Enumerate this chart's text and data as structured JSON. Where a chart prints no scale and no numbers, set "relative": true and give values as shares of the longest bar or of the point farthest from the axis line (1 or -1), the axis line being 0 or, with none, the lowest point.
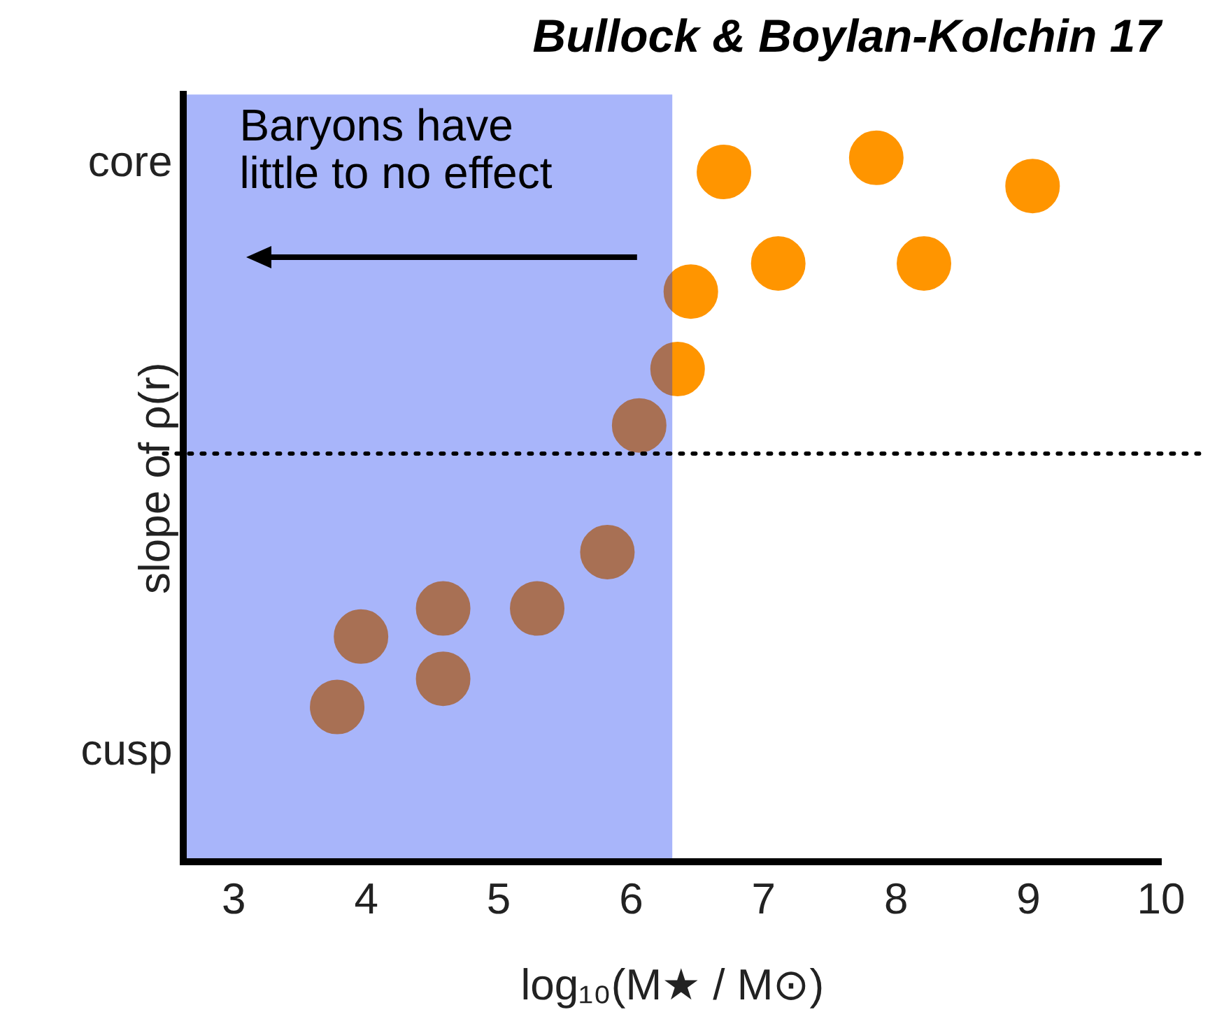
{
  "chart_data": {
    "type": "scatter",
    "title": "Bullock & Boylan-Kolchin 17",
    "xlabel": "log₁₀(M★ / M⊙)",
    "ylabel": "slope of ρ(r)",
    "relative": true,
    "x": [
      3.78,
      3.96,
      4.58,
      4.58,
      5.29,
      5.82,
      6.06,
      6.35,
      6.45,
      6.7,
      7.11,
      7.85,
      8.21,
      9.03
    ],
    "series": [
      {
        "color": "#ff9500",
        "values": [
          0.22,
          0.32,
          0.36,
          0.26,
          0.36,
          0.44,
          0.62,
          0.7,
          0.81,
          0.98,
          0.85,
          1,
          0.85,
          0.96
        ]
      }
    ],
    "xlim": [
      2.62,
      10
    ],
    "xticks": [
      3,
      4,
      5,
      6,
      7,
      8,
      9,
      10
    ],
    "annotations": [
      "core",
      "cusp"
    ],
    "bands": [
      {
        "axis": "x",
        "from": 2.62,
        "to": 6.31,
        "label": "Baryons have\nlittle to no effect",
        "color": "#062cf0"
      }
    ],
    "ref_lines": [
      {
        "axis": "y",
        "value": 0.58,
        "line_style": "dotted",
        "color": "#000000"
      }
    ],
    "grid": false,
    "legend": false,
    "marker": "circle"
  }
}
